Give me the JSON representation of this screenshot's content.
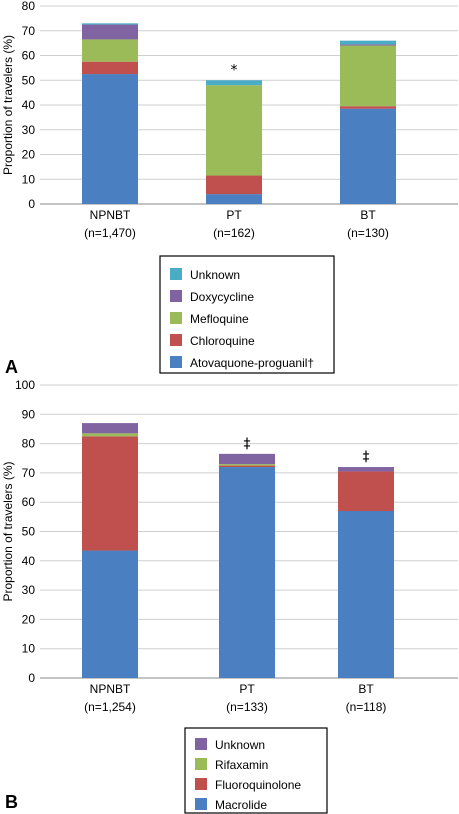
{
  "chart_data": [
    {
      "type": "bar",
      "stacked": true,
      "panel_label": "A",
      "ylabel": "Proportion of travelers (%)",
      "ylim": [
        0,
        80
      ],
      "yticks": [
        "0",
        "10",
        "20",
        "30",
        "40",
        "50",
        "60",
        "70",
        "80"
      ],
      "categories": [
        [
          "NPNBT",
          "(n=1,470)"
        ],
        [
          "PT",
          "(n=162)"
        ],
        [
          "BT",
          "(n=130)"
        ]
      ],
      "annotations": [
        "",
        "*",
        ""
      ],
      "legend": {
        "position": "bottom-center",
        "order": [
          "Unknown",
          "Doxycycline",
          "Mefloquine",
          "Chloroquine",
          "Atovaquone-proguanil†"
        ]
      },
      "series": [
        {
          "name": "Atovaquone-proguanil†",
          "color": "#4a7fc1",
          "values": [
            52.5,
            4,
            38.5
          ]
        },
        {
          "name": "Chloroquine",
          "color": "#c0504d",
          "values": [
            5,
            7.5,
            1
          ]
        },
        {
          "name": "Mefloquine",
          "color": "#9bbb59",
          "values": [
            9,
            36.5,
            24.5
          ]
        },
        {
          "name": "Doxycycline",
          "color": "#8064a2",
          "values": [
            6,
            0,
            0.5
          ]
        },
        {
          "name": "Unknown",
          "color": "#4bacc6",
          "values": [
            0.5,
            2,
            1.5
          ]
        }
      ]
    },
    {
      "type": "bar",
      "stacked": true,
      "panel_label": "B",
      "ylabel": "Proportion of travelers (%)",
      "ylim": [
        0,
        100
      ],
      "yticks": [
        "0",
        "10",
        "20",
        "30",
        "40",
        "50",
        "60",
        "70",
        "80",
        "90",
        "100"
      ],
      "categories": [
        [
          "NPNBT",
          "(n=1,254)"
        ],
        [
          "PT",
          "(n=133)"
        ],
        [
          "BT",
          "(n=118)"
        ]
      ],
      "annotations": [
        "",
        "‡",
        "‡"
      ],
      "legend": {
        "position": "bottom-center",
        "order": [
          "Unknown",
          "Rifaxamin",
          "Fluoroquinolone",
          "Macrolide"
        ]
      },
      "series": [
        {
          "name": "Macrolide",
          "color": "#4a7fc1",
          "values": [
            43.5,
            72,
            57
          ]
        },
        {
          "name": "Fluoroquinolone",
          "color": "#c0504d",
          "values": [
            39,
            0.5,
            13.5
          ]
        },
        {
          "name": "Rifaxamin",
          "color": "#9bbb59",
          "values": [
            1,
            0.5,
            0
          ]
        },
        {
          "name": "Unknown",
          "color": "#8064a2",
          "values": [
            3.5,
            3.5,
            1.5
          ]
        }
      ]
    }
  ]
}
